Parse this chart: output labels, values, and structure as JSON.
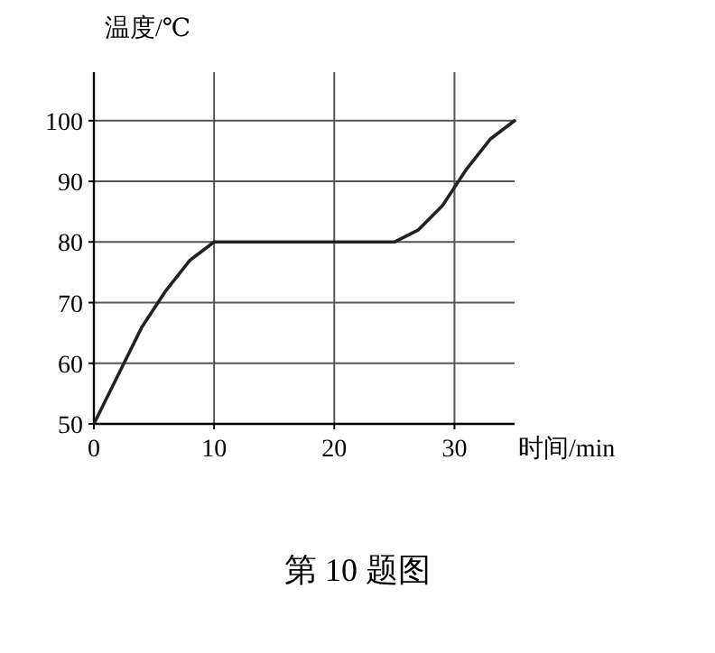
{
  "chart_data": {
    "type": "line",
    "xlabel": "时间/min",
    "ylabel": "温度/℃",
    "annotations": [
      "第 10 题图"
    ],
    "x": [
      0,
      2,
      4,
      6,
      8,
      10,
      25,
      27,
      29,
      31,
      33,
      35
    ],
    "series": [
      {
        "color": "#222222",
        "values": [
          50,
          58,
          66,
          72,
          77,
          80,
          80,
          82,
          86,
          92,
          97,
          100
        ]
      }
    ],
    "xlim": [
      0,
      35
    ],
    "ylim": [
      50,
      108
    ],
    "xticks": [
      0,
      10,
      20,
      30
    ],
    "yticks": [
      50,
      60,
      70,
      80,
      90,
      100
    ],
    "grid": true,
    "marker": "none",
    "line_style": "solid"
  }
}
